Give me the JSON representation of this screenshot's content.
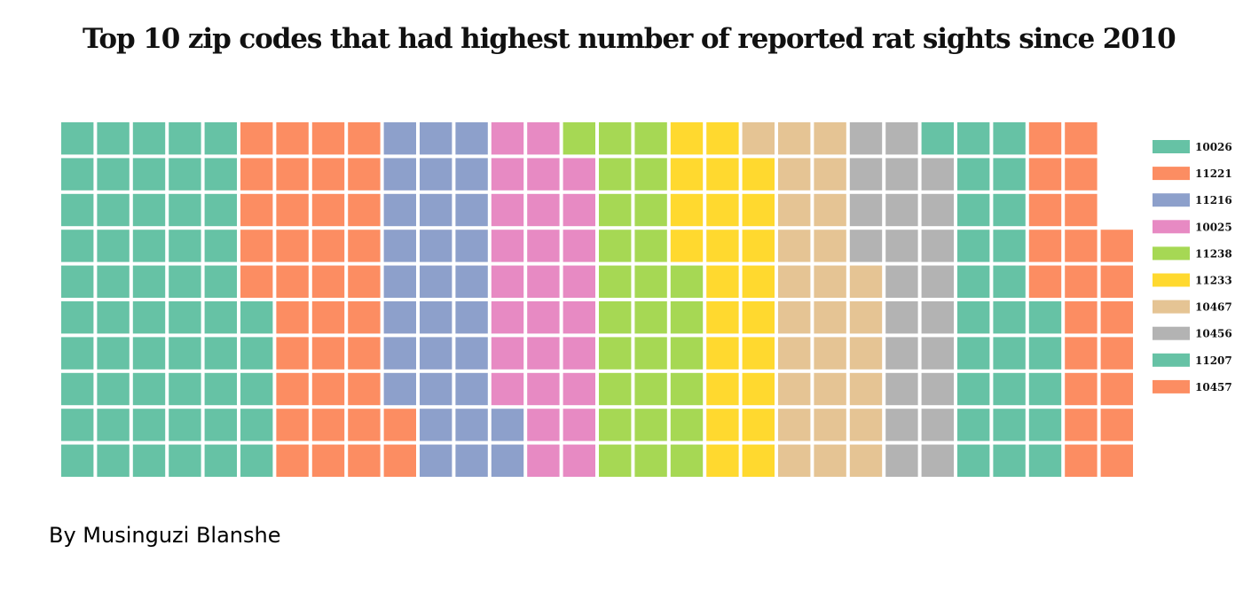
{
  "title": "Top 10 zip codes that had highest number of reported rat sights since 2010",
  "byline": "By Musinguzi Blanshe",
  "chart_data": {
    "type": "waffle",
    "title": "Top 10 zip codes that had highest number of reported rat sights since 2010",
    "cell_count": 297,
    "grid": {
      "rows": 10,
      "columns": 30,
      "fill_order": "column-major"
    },
    "legend_position": "right",
    "categories": [
      "10026",
      "11221",
      "11216",
      "10025",
      "11238",
      "11233",
      "10467",
      "10456",
      "11207",
      "10457"
    ],
    "values": [
      55,
      37,
      30,
      27,
      27,
      23,
      27,
      23,
      26,
      22
    ],
    "colors": [
      "#66c2a5",
      "#fc8d62",
      "#8da0cb",
      "#e78ac3",
      "#a6d854",
      "#ffd92f",
      "#e5c494",
      "#b3b3b3",
      "#66c2a5",
      "#fc8d62"
    ]
  }
}
